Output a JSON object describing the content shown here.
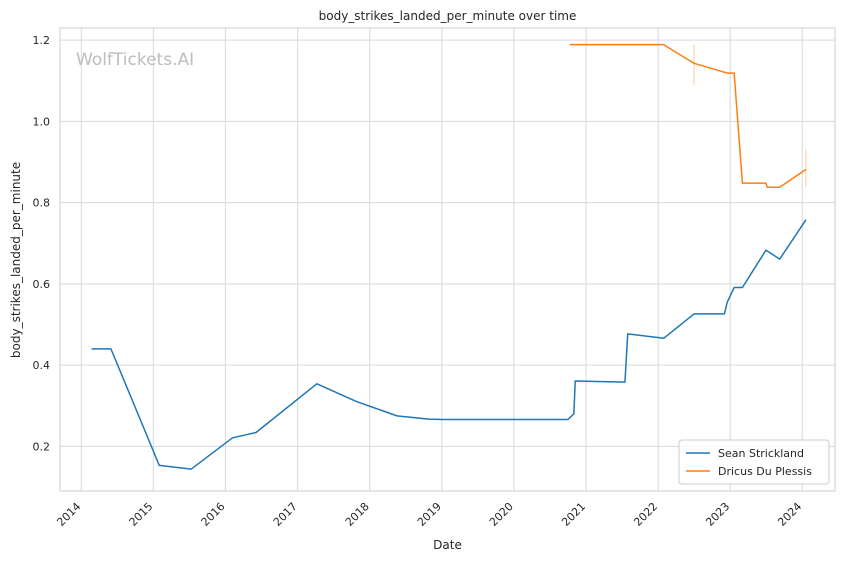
{
  "watermark": "WolfTickets.AI",
  "chart_data": {
    "type": "line",
    "title": "body_strikes_landed_per_minute over time",
    "xlabel": "Date",
    "ylabel": "body_strikes_landed_per_minute",
    "xlim": [
      "2013-09-15",
      "2024-06-15"
    ],
    "ylim": [
      0.09,
      1.23
    ],
    "x_ticks": [
      "2014",
      "2015",
      "2016",
      "2017",
      "2018",
      "2019",
      "2020",
      "2021",
      "2022",
      "2023",
      "2024"
    ],
    "y_ticks": [
      "0.2",
      "0.4",
      "0.6",
      "0.8",
      "1.0",
      "1.2"
    ],
    "y_tick_values": [
      0.2,
      0.4,
      0.6,
      0.8,
      1.0,
      1.2
    ],
    "grid": true,
    "legend_position": "lower-right",
    "series": [
      {
        "name": "Sean Strickland",
        "color": "#1f77b4",
        "x": [
          "2014-02-22",
          "2014-05-31",
          "2015-01-31",
          "2015-07-12",
          "2016-02-06",
          "2016-06-04",
          "2017-04-08",
          "2017-10-28",
          "2018-05-19",
          "2018-10-27",
          "2019-01-01",
          "2020-01-01",
          "2020-10-01",
          "2020-10-31",
          "2020-11-07",
          "2021-07-17",
          "2021-07-31",
          "2022-01-29",
          "2022-07-02",
          "2022-12-03",
          "2022-12-17",
          "2023-01-21",
          "2023-03-04",
          "2023-07-01",
          "2023-09-09",
          "2024-01-20"
        ],
        "y": [
          0.44,
          0.44,
          0.153,
          0.144,
          0.221,
          0.234,
          0.354,
          0.31,
          0.275,
          0.267,
          0.266,
          0.266,
          0.266,
          0.28,
          0.361,
          0.358,
          0.477,
          0.466,
          0.526,
          0.526,
          0.555,
          0.591,
          0.591,
          0.683,
          0.661,
          0.758
        ]
      },
      {
        "name": "Dricus Du Plessis",
        "color": "#ff7f0e",
        "x": [
          "2020-10-10",
          "2022-01-29",
          "2022-07-02",
          "2022-12-17",
          "2023-01-21",
          "2023-03-04",
          "2023-07-01",
          "2023-07-08",
          "2023-09-09",
          "2024-01-20"
        ],
        "y": [
          1.189,
          1.189,
          1.143,
          1.119,
          1.119,
          0.848,
          0.848,
          0.838,
          0.838,
          0.882
        ]
      }
    ],
    "error_ticks": [
      {
        "x": "2022-07-02",
        "y_low": 1.09,
        "y_high": 1.19
      },
      {
        "x": "2024-01-20",
        "y_low": 0.84,
        "y_high": 0.93
      }
    ]
  }
}
